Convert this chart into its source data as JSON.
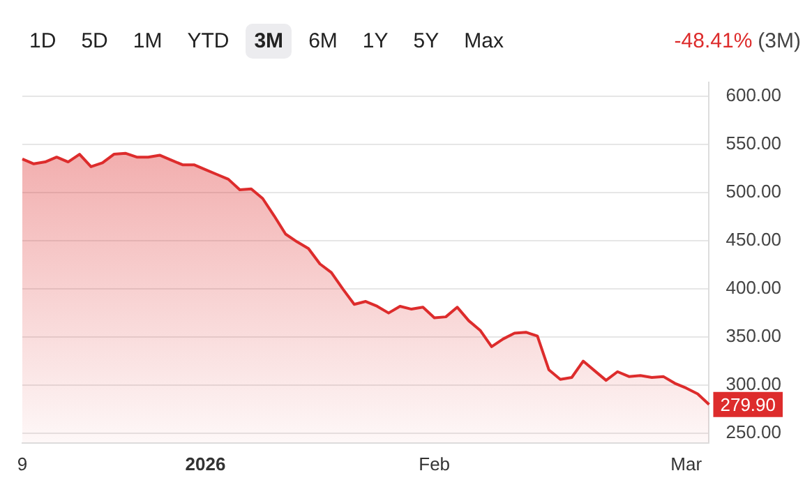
{
  "chart_data": {
    "type": "area",
    "categories": [
      "9",
      null,
      null,
      null,
      null,
      null,
      null,
      null,
      null,
      null,
      null,
      null,
      null,
      null,
      null,
      null,
      "2026",
      null,
      null,
      null,
      null,
      null,
      null,
      null,
      null,
      null,
      null,
      null,
      null,
      null,
      null,
      null,
      null,
      null,
      null,
      null,
      "Feb",
      null,
      null,
      null,
      null,
      null,
      null,
      null,
      null,
      null,
      null,
      null,
      null,
      null,
      null,
      null,
      null,
      null,
      null,
      null,
      null,
      null,
      "Mar",
      null,
      null
    ],
    "series": [
      {
        "color": "#dd2c2c",
        "values": [
          535,
          530,
          532,
          537,
          532,
          540,
          527,
          531,
          540,
          541,
          537,
          537,
          539,
          534,
          529,
          529,
          524,
          519,
          514,
          503,
          504,
          494,
          476,
          457,
          449,
          442,
          426,
          417,
          400,
          384,
          387,
          382,
          375,
          382,
          379,
          381,
          370,
          371,
          381,
          367,
          357,
          340,
          348,
          354,
          355,
          351,
          316,
          306,
          308,
          325,
          315,
          305,
          314,
          309,
          310,
          308,
          309,
          302,
          297,
          291,
          279.9
        ],
        "value_labels": [
          null,
          null,
          null,
          null,
          null,
          null,
          null,
          null,
          null,
          null,
          null,
          null,
          null,
          null,
          null,
          null,
          null,
          null,
          null,
          null,
          null,
          null,
          null,
          null,
          null,
          null,
          null,
          null,
          null,
          null,
          null,
          null,
          null,
          null,
          null,
          null,
          null,
          null,
          null,
          null,
          null,
          null,
          null,
          null,
          null,
          null,
          null,
          null,
          null,
          null,
          null,
          null,
          null,
          null,
          null,
          null,
          null,
          null,
          null,
          null,
          "279.90"
        ]
      }
    ],
    "ylim": [
      240,
      615
    ],
    "yticks": [
      {
        "value": 250,
        "label": "250.00"
      },
      {
        "value": 300,
        "label": "300.00"
      },
      {
        "value": 350,
        "label": "350.00"
      },
      {
        "value": 400,
        "label": "400.00"
      },
      {
        "value": 450,
        "label": "450.00"
      },
      {
        "value": 500,
        "label": "500.00"
      },
      {
        "value": 550,
        "label": "550.00"
      },
      {
        "value": 600,
        "label": "600.00"
      }
    ],
    "grid": "y",
    "annotations": [
      "1D",
      "5D",
      "1M",
      "YTD",
      "3M",
      "6M",
      "1Y",
      "5Y",
      "Max",
      "-48.41%",
      "(3M)"
    ]
  }
}
